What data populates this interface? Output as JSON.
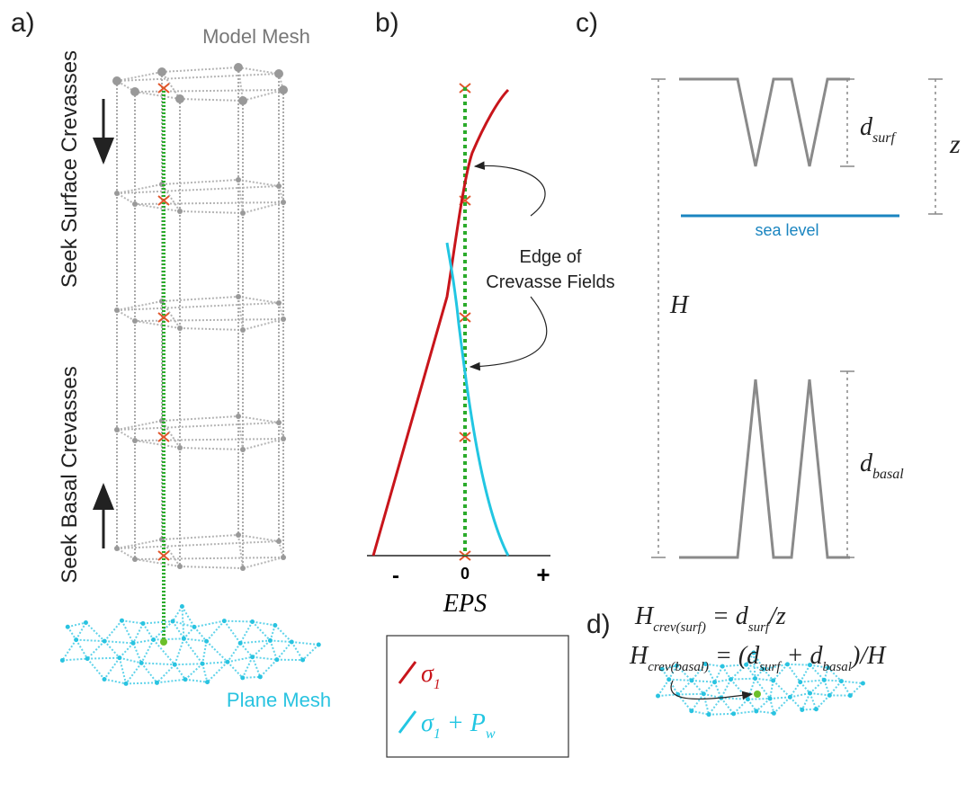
{
  "panel_a": {
    "label": "a)",
    "top_label": "Model Mesh",
    "surface_label": "Seek Surface Crevasses",
    "basal_label": "Seek Basal Crevasses",
    "bottom_label": "Plane Mesh"
  },
  "panel_b": {
    "label": "b)",
    "annotation": [
      "Edge of",
      "Crevasse Fields"
    ],
    "axis_ticks": [
      "-",
      "0",
      "+"
    ],
    "axis_label": "EPS",
    "legend": [
      {
        "parts": [
          "σ",
          "1"
        ]
      },
      {
        "parts": [
          "σ",
          "1",
          " + P",
          "w"
        ]
      }
    ]
  },
  "panel_c": {
    "label": "c)",
    "d_surf": [
      "d",
      "surf"
    ],
    "z": "z",
    "sea_level": "sea level",
    "H": "H",
    "d_basal": [
      "d",
      "basal"
    ]
  },
  "panel_d": {
    "label": "d)",
    "equations": [
      {
        "parts": [
          "H",
          "crev(surf)",
          " = d",
          "surf",
          "/z"
        ]
      },
      {
        "parts": [
          "H",
          "crev(basal)",
          " = (d",
          "surf",
          " + d",
          "basal",
          ")/H"
        ]
      }
    ]
  }
}
